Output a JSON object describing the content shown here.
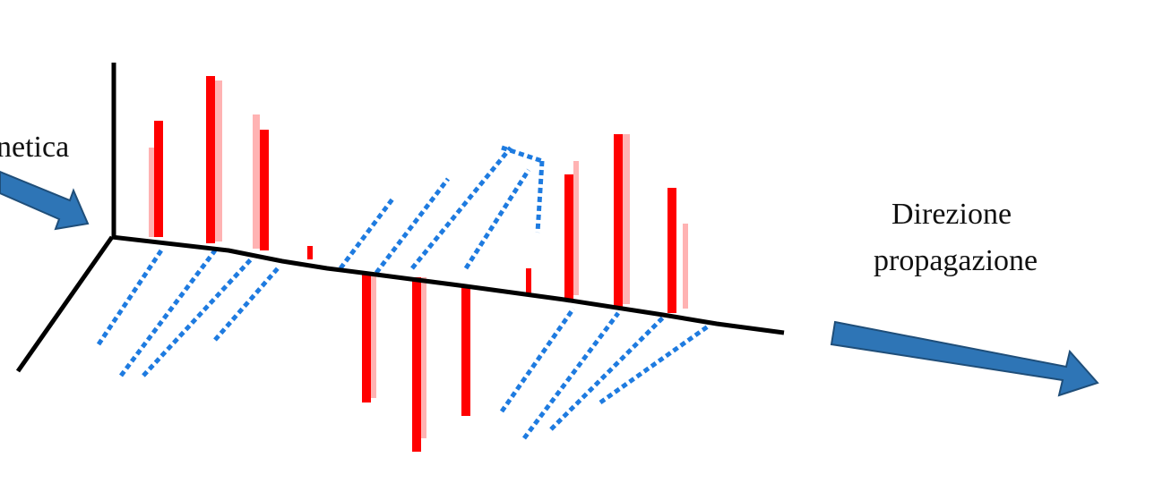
{
  "labels": {
    "left": "netica",
    "right_line1": "Direzione",
    "right_line2": "propagazione"
  }
}
